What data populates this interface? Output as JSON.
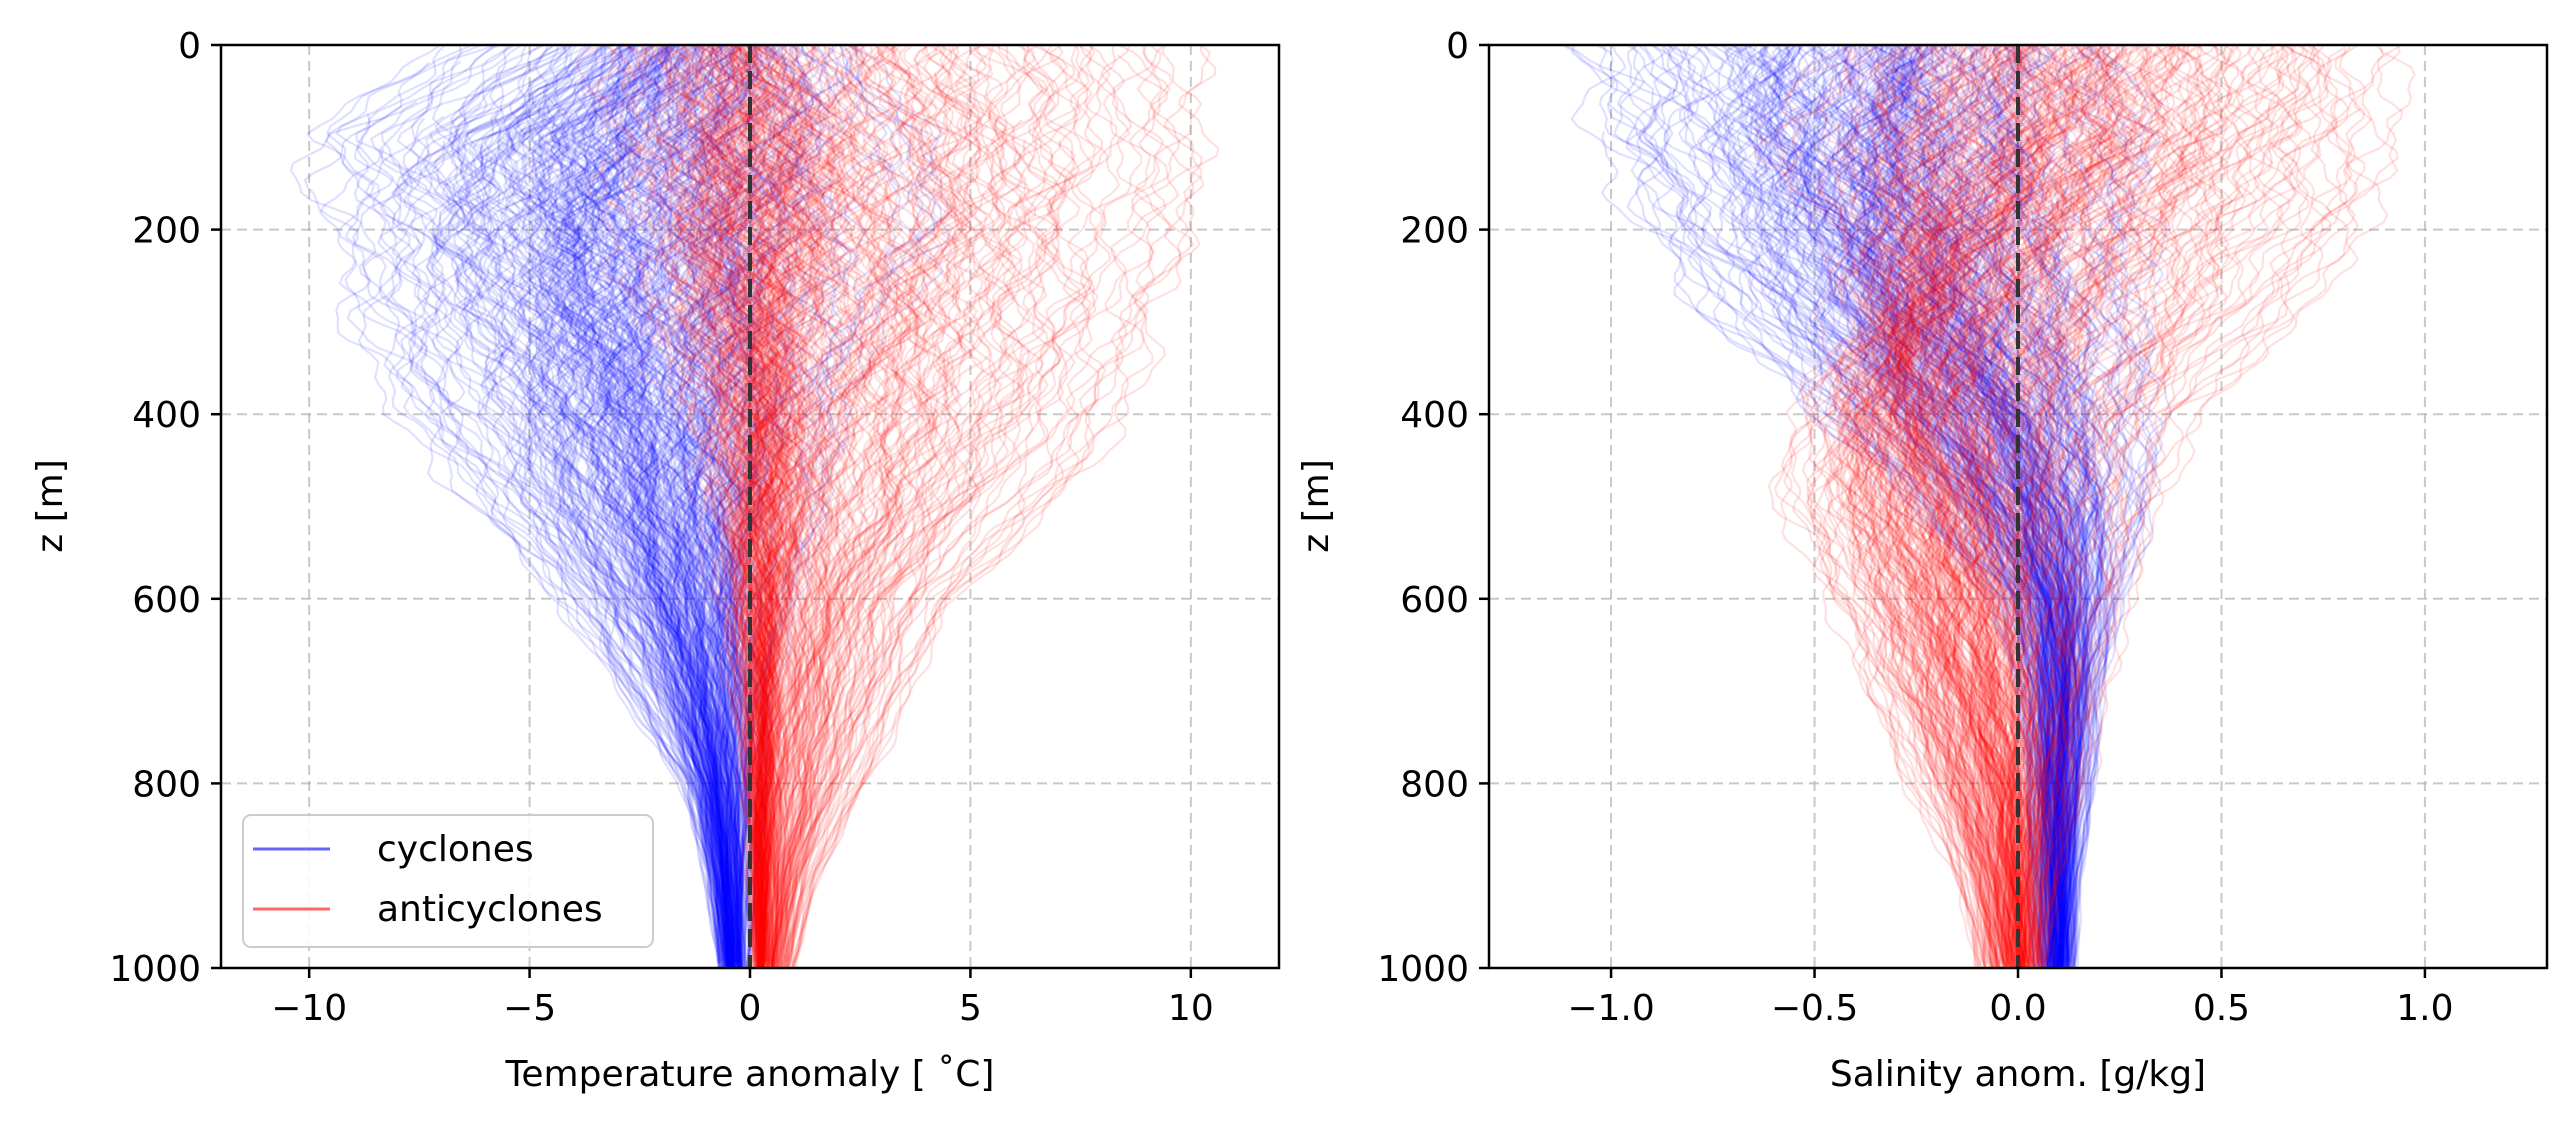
{
  "colors": {
    "cyclones": "#0000ff",
    "anticyclones": "#ff0000",
    "zero_line": "#333333",
    "grid": "#b0b0b0"
  },
  "chart_data": [
    {
      "type": "line",
      "xlabel": "Temperature anomaly [$^\\circ$C]",
      "xlabel_display": "Temperature anomaly [ ˚C]",
      "ylabel": "z [m]",
      "xlim": [
        -12,
        12
      ],
      "ylim": [
        1000,
        0
      ],
      "y_inverted": true,
      "xticks": [
        -10,
        -5,
        0,
        5,
        10
      ],
      "xtick_labels": [
        "−10",
        "−5",
        "0",
        "5",
        "10"
      ],
      "yticks": [
        0,
        200,
        400,
        600,
        800,
        1000
      ],
      "ytick_labels": [
        "0",
        "200",
        "400",
        "600",
        "800",
        "1000"
      ],
      "grid": true,
      "zero_line_x": 0,
      "legend": {
        "placement": "lower-left",
        "entries": [
          "cyclones",
          "anticyclones"
        ]
      },
      "series": [
        {
          "name": "cyclones",
          "color": "#0000ff",
          "profile_count": 300,
          "depth": [
            0,
            100,
            200,
            300,
            400,
            500,
            600,
            700,
            800,
            900,
            1000
          ],
          "p05": [
            -6.5,
            -9.5,
            -9.0,
            -8.5,
            -7.5,
            -6.0,
            -4.2,
            -2.8,
            -1.5,
            -1.0,
            -0.7
          ],
          "median": [
            -1.5,
            -2.8,
            -3.0,
            -2.8,
            -2.4,
            -1.9,
            -1.4,
            -1.0,
            -0.7,
            -0.5,
            -0.4
          ],
          "p95": [
            2.5,
            3.5,
            3.5,
            2.8,
            2.0,
            1.2,
            0.8,
            0.5,
            0.3,
            0.1,
            0.0
          ]
        },
        {
          "name": "anticyclones",
          "color": "#ff0000",
          "profile_count": 300,
          "depth": [
            0,
            100,
            200,
            300,
            400,
            500,
            600,
            700,
            800,
            900,
            1000
          ],
          "p05": [
            -3.0,
            -3.0,
            -2.5,
            -2.0,
            -1.2,
            -0.8,
            -0.5,
            -0.3,
            -0.1,
            0.0,
            0.1
          ],
          "median": [
            0.5,
            1.0,
            1.0,
            0.9,
            0.8,
            0.7,
            0.6,
            0.5,
            0.4,
            0.35,
            0.3
          ],
          "p95": [
            9.5,
            9.5,
            9.5,
            9.0,
            8.0,
            6.5,
            4.5,
            3.5,
            2.5,
            1.5,
            1.0
          ]
        }
      ]
    },
    {
      "type": "line",
      "xlabel": "Salinity anom. [g/kg]",
      "ylabel": "z [m]",
      "xlim": [
        -1.3,
        1.3
      ],
      "ylim": [
        1000,
        0
      ],
      "y_inverted": true,
      "xticks": [
        -1.0,
        -0.5,
        0.0,
        0.5,
        1.0
      ],
      "xtick_labels": [
        "−1.0",
        "−0.5",
        "0.0",
        "0.5",
        "1.0"
      ],
      "yticks": [
        0,
        200,
        400,
        600,
        800,
        1000
      ],
      "ytick_labels": [
        "0",
        "200",
        "400",
        "600",
        "800",
        "1000"
      ],
      "grid": true,
      "zero_line_x": 0,
      "series": [
        {
          "name": "cyclones",
          "color": "#0000ff",
          "profile_count": 300,
          "depth": [
            0,
            100,
            200,
            300,
            400,
            500,
            600,
            700,
            800,
            900,
            1000
          ],
          "p05": [
            -1.1,
            -1.0,
            -0.85,
            -0.7,
            -0.5,
            -0.25,
            -0.05,
            0.0,
            0.02,
            0.03,
            0.04
          ],
          "median": [
            -0.3,
            -0.35,
            -0.3,
            -0.2,
            -0.05,
            0.05,
            0.1,
            0.11,
            0.1,
            0.1,
            0.1
          ],
          "p95": [
            0.2,
            0.25,
            0.25,
            0.3,
            0.3,
            0.3,
            0.25,
            0.2,
            0.18,
            0.15,
            0.14
          ]
        },
        {
          "name": "anticyclones",
          "color": "#ff0000",
          "profile_count": 300,
          "depth": [
            0,
            100,
            200,
            300,
            400,
            500,
            600,
            700,
            800,
            900,
            1000
          ],
          "p05": [
            -0.4,
            -0.55,
            -0.45,
            -0.4,
            -0.5,
            -0.55,
            -0.45,
            -0.35,
            -0.25,
            -0.15,
            -0.1
          ],
          "median": [
            0.1,
            0.05,
            -0.1,
            -0.2,
            -0.25,
            -0.2,
            -0.15,
            -0.1,
            -0.05,
            -0.02,
            0.0
          ],
          "p95": [
            0.9,
            0.85,
            0.8,
            0.65,
            0.4,
            0.3,
            0.25,
            0.2,
            0.15,
            0.1,
            0.07
          ]
        }
      ]
    }
  ]
}
